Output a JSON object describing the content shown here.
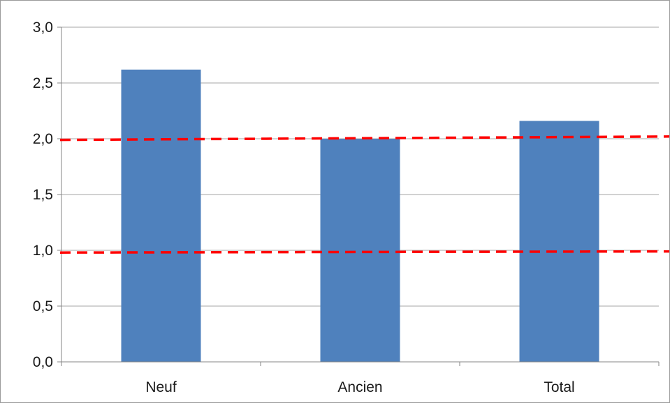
{
  "chart_data": {
    "type": "bar",
    "categories": [
      "Neuf",
      "Ancien",
      "Total"
    ],
    "values": [
      2.62,
      2.0,
      2.16
    ],
    "ylim": [
      0,
      3
    ],
    "yticks": [
      "0,0",
      "0,5",
      "1,0",
      "1,5",
      "2,0",
      "2,5",
      "3,0"
    ],
    "ytick_values": [
      0,
      0.5,
      1.0,
      1.5,
      2.0,
      2.5,
      3.0
    ],
    "grid": true,
    "legend": "none",
    "bar_color": "#4F81BD",
    "reference_lines": [
      {
        "y_start": 1.99,
        "y_end": 2.02,
        "style": "dashed",
        "color": "#FF0000"
      },
      {
        "y_start": 0.98,
        "y_end": 0.99,
        "style": "dashed",
        "color": "#FF0000"
      }
    ]
  }
}
